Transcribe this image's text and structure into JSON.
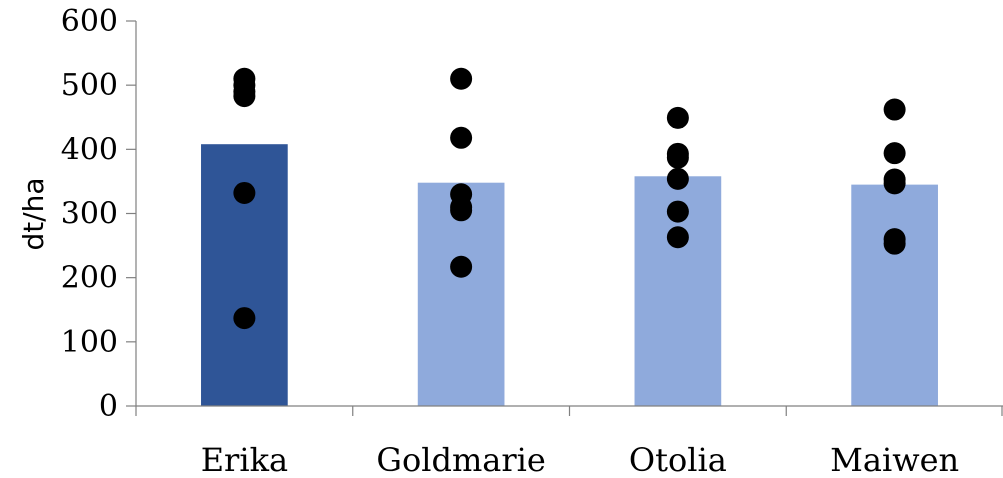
{
  "chart_data": {
    "type": "bar",
    "title": "",
    "xlabel": "",
    "ylabel": "dt/ha",
    "ylim": [
      0,
      600
    ],
    "yticks": [
      0,
      100,
      200,
      300,
      400,
      500,
      600
    ],
    "yticks_labels": [
      "0",
      "100",
      "200",
      "300",
      "400",
      "500",
      "600"
    ],
    "grid": false,
    "legend": "none",
    "categories": [
      "Erika",
      "Goldmarie",
      "Otolia",
      "Maiwen"
    ],
    "series": [
      {
        "type": "bar",
        "values": [
          408,
          348,
          358,
          345
        ],
        "colors": [
          "#2f5597",
          "#8faadc",
          "#8faadc",
          "#8faadc"
        ]
      },
      {
        "type": "scatter",
        "color": "#000000",
        "points": [
          [
            510,
            500,
            490,
            483,
            332,
            137
          ],
          [
            510,
            418,
            330,
            310,
            305,
            217
          ],
          [
            449,
            393,
            387,
            354,
            303,
            263
          ],
          [
            462,
            394,
            353,
            347,
            260,
            253
          ]
        ]
      }
    ]
  }
}
